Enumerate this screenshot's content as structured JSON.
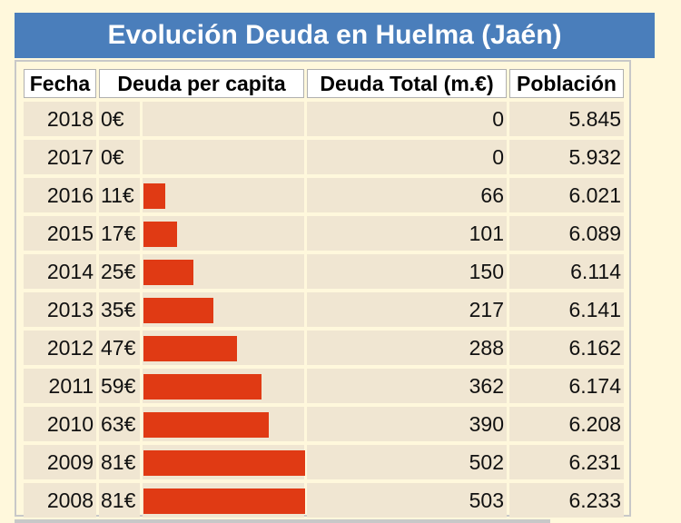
{
  "title": "Evolución Deuda en Huelma (Jaén)",
  "colors": {
    "header_bg": "#4a7ebb",
    "bar": "#e03a14",
    "row_bg": "#f0e6d2",
    "page_bg": "#fff8dc"
  },
  "headers": {
    "fecha": "Fecha",
    "per_capita": "Deuda per capita",
    "total": "Deuda Total (m.€)",
    "poblacion": "Población"
  },
  "rows": [
    {
      "year": "2018",
      "per_capita": "0€",
      "total": "0",
      "poblacion": "5.845"
    },
    {
      "year": "2017",
      "per_capita": "0€",
      "total": "0",
      "poblacion": "5.932"
    },
    {
      "year": "2016",
      "per_capita": "11€",
      "total": "66",
      "poblacion": "6.021"
    },
    {
      "year": "2015",
      "per_capita": "17€",
      "total": "101",
      "poblacion": "6.089"
    },
    {
      "year": "2014",
      "per_capita": "25€",
      "total": "150",
      "poblacion": "6.114"
    },
    {
      "year": "2013",
      "per_capita": "35€",
      "total": "217",
      "poblacion": "6.141"
    },
    {
      "year": "2012",
      "per_capita": "47€",
      "total": "288",
      "poblacion": "6.162"
    },
    {
      "year": "2011",
      "per_capita": "59€",
      "total": "362",
      "poblacion": "6.174"
    },
    {
      "year": "2010",
      "per_capita": "63€",
      "total": "390",
      "poblacion": "6.208"
    },
    {
      "year": "2009",
      "per_capita": "81€",
      "total": "502",
      "poblacion": "6.231"
    },
    {
      "year": "2008",
      "per_capita": "81€",
      "total": "503",
      "poblacion": "6.233"
    }
  ],
  "chart_data": {
    "type": "bar",
    "title": "Evolución Deuda en Huelma (Jaén)",
    "categories": [
      "2018",
      "2017",
      "2016",
      "2015",
      "2014",
      "2013",
      "2012",
      "2011",
      "2010",
      "2009",
      "2008"
    ],
    "series": [
      {
        "name": "Deuda per capita",
        "values": [
          0,
          0,
          11,
          17,
          25,
          35,
          47,
          59,
          63,
          81,
          81
        ]
      }
    ]
  }
}
